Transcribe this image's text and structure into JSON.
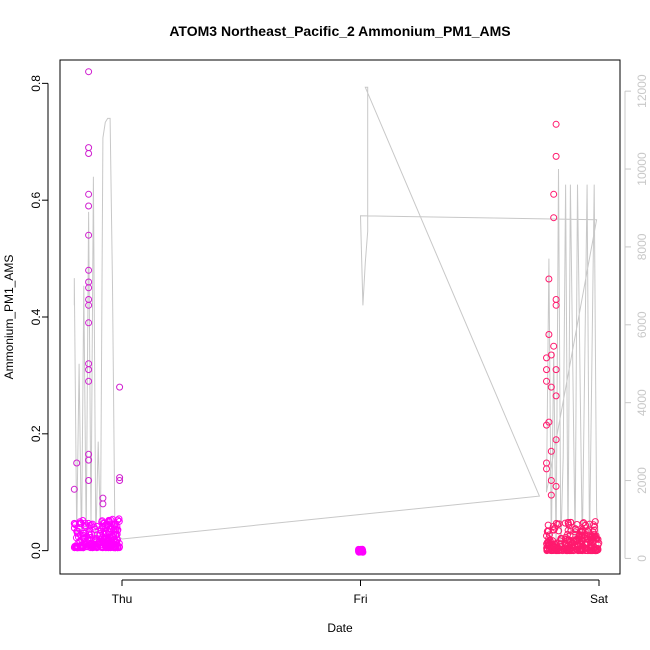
{
  "chart_data": {
    "type": "scatter",
    "title": "ATOM3 Northeast_Pacific_2 Ammonium_PM1_AMS",
    "xlabel": "Date",
    "ylabel": "Ammonium_PM1_AMS",
    "x_ticks": [
      "Thu",
      "Fri",
      "Sat"
    ],
    "ylim": [
      -0.04,
      0.84
    ],
    "y_ticks": [
      0.0,
      0.2,
      0.4,
      0.6,
      0.8
    ],
    "y_tick_labels": [
      "0.0",
      "0.2",
      "0.4",
      "0.6",
      "0.8"
    ],
    "y2lim": [
      -400,
      12800
    ],
    "y2_ticks": [
      0,
      2000,
      4000,
      6000,
      8000,
      10000,
      12000
    ],
    "y2_tick_labels": [
      "0",
      "2000",
      "4000",
      "6000",
      "8000",
      "10000",
      "12000"
    ],
    "grid": false,
    "colors": {
      "series_a": "#ff00ff",
      "series_b": "#d020d0",
      "series_c": "#ff1a6e",
      "altitude": "#c8c8c8"
    },
    "series": [
      {
        "marker": "open-circle",
        "color": "#ff00ff",
        "x_range_days": [
          -0.2,
          -0.01
        ],
        "y_baseline": 0.01,
        "outliers": [
          [
            -0.14,
            0.82
          ],
          [
            -0.14,
            0.69
          ],
          [
            -0.14,
            0.68
          ],
          [
            -0.14,
            0.61
          ],
          [
            -0.14,
            0.59
          ],
          [
            -0.14,
            0.54
          ],
          [
            -0.14,
            0.48
          ],
          [
            -0.14,
            0.46
          ],
          [
            -0.14,
            0.45
          ],
          [
            -0.14,
            0.43
          ],
          [
            -0.14,
            0.42
          ],
          [
            -0.14,
            0.39
          ],
          [
            -0.14,
            0.32
          ],
          [
            -0.14,
            0.31
          ],
          [
            -0.14,
            0.29
          ],
          [
            -0.14,
            0.165
          ],
          [
            -0.14,
            0.155
          ],
          [
            -0.14,
            0.12
          ],
          [
            -0.19,
            0.15
          ],
          [
            -0.2,
            0.105
          ],
          [
            -0.01,
            0.28
          ],
          [
            -0.01,
            0.125
          ],
          [
            -0.01,
            0.12
          ],
          [
            -0.08,
            0.09
          ],
          [
            -0.08,
            0.08
          ]
        ]
      },
      {
        "marker": "open-circle",
        "color": "#ff00ff",
        "x_range_days": [
          0.99,
          1.01
        ],
        "y_baseline": 0.0,
        "outliers": []
      },
      {
        "marker": "open-circle",
        "color": "#ff1a6e",
        "x_range_days": [
          1.78,
          2.0
        ],
        "y_baseline": 0.005,
        "outliers": [
          [
            1.82,
            0.73
          ],
          [
            1.82,
            0.675
          ],
          [
            1.81,
            0.61
          ],
          [
            1.81,
            0.57
          ],
          [
            1.79,
            0.465
          ],
          [
            1.82,
            0.43
          ],
          [
            1.82,
            0.42
          ],
          [
            1.79,
            0.37
          ],
          [
            1.81,
            0.35
          ],
          [
            1.8,
            0.335
          ],
          [
            1.78,
            0.33
          ],
          [
            1.82,
            0.31
          ],
          [
            1.78,
            0.31
          ],
          [
            1.78,
            0.29
          ],
          [
            1.8,
            0.28
          ],
          [
            1.82,
            0.265
          ],
          [
            1.79,
            0.22
          ],
          [
            1.78,
            0.215
          ],
          [
            1.82,
            0.19
          ],
          [
            1.8,
            0.17
          ],
          [
            1.78,
            0.15
          ],
          [
            1.78,
            0.14
          ],
          [
            1.8,
            0.12
          ],
          [
            1.82,
            0.11
          ],
          [
            1.8,
            0.095
          ]
        ]
      }
    ],
    "altitude_series": {
      "axis": "right",
      "color": "#c8c8c8",
      "points": [
        [
          -0.2,
          6500
        ],
        [
          -0.2,
          7200
        ],
        [
          -0.19,
          600
        ],
        [
          -0.18,
          5000
        ],
        [
          -0.17,
          300
        ],
        [
          -0.16,
          7000
        ],
        [
          -0.15,
          500
        ],
        [
          -0.14,
          8900
        ],
        [
          -0.13,
          800
        ],
        [
          -0.12,
          9800
        ],
        [
          -0.11,
          400
        ],
        [
          -0.1,
          3000
        ],
        [
          -0.09,
          700
        ],
        [
          -0.08,
          10800
        ],
        [
          -0.07,
          11200
        ],
        [
          -0.06,
          11300
        ],
        [
          -0.05,
          11300
        ],
        [
          -0.04,
          7000
        ],
        [
          -0.03,
          900
        ],
        [
          -0.02,
          600
        ],
        [
          0.0,
          500
        ],
        [
          1.75,
          1600
        ],
        [
          1.02,
          12100
        ],
        [
          1.03,
          12100
        ],
        [
          1.03,
          8400
        ],
        [
          1.02,
          7600
        ],
        [
          1.01,
          6500
        ],
        [
          1.0,
          8800
        ],
        [
          1.99,
          8700
        ],
        [
          1.78,
          1700
        ],
        [
          1.79,
          7700
        ],
        [
          1.8,
          300
        ],
        [
          1.81,
          5300
        ],
        [
          1.82,
          200
        ],
        [
          1.83,
          10000
        ],
        [
          1.84,
          300
        ],
        [
          1.85,
          2600
        ],
        [
          1.86,
          9600
        ],
        [
          1.87,
          300
        ],
        [
          1.88,
          9600
        ],
        [
          1.9,
          400
        ],
        [
          1.91,
          9600
        ],
        [
          1.93,
          300
        ],
        [
          1.95,
          9600
        ],
        [
          1.96,
          300
        ],
        [
          1.98,
          9600
        ],
        [
          1.99,
          1200
        ],
        [
          2.0,
          300
        ]
      ]
    }
  }
}
